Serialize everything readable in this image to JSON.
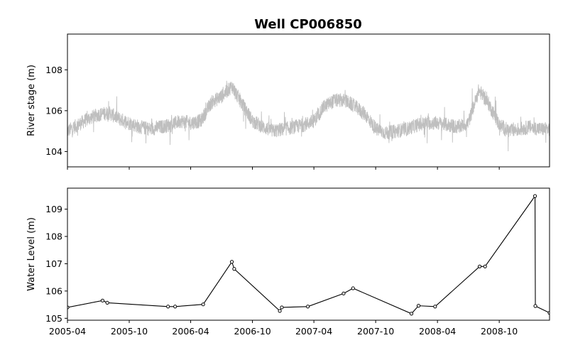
{
  "chart_data": [
    {
      "type": "line",
      "title": "Well CP006850",
      "xlabel": "",
      "ylabel": "River stage (m)",
      "ylim": [
        103.25,
        109.75
      ],
      "yticks": [
        104,
        106,
        108
      ],
      "xlim": [
        "2005-04-01",
        "2009-02-27"
      ],
      "grid": false,
      "series": [
        {
          "color": "#bfbfbf",
          "x": [
            "2005-04-01",
            "2005-05-01",
            "2005-06-01",
            "2005-07-01",
            "2005-08-01",
            "2005-09-01",
            "2005-10-01",
            "2005-11-01",
            "2005-12-01",
            "2006-01-01",
            "2006-02-01",
            "2006-03-01",
            "2006-04-01",
            "2006-05-01",
            "2006-06-01",
            "2006-07-01",
            "2006-08-01",
            "2006-09-01",
            "2006-10-01",
            "2006-11-01",
            "2006-12-01",
            "2007-01-01",
            "2007-02-01",
            "2007-03-01",
            "2007-04-01",
            "2007-05-01",
            "2007-06-01",
            "2007-07-01",
            "2007-08-01",
            "2007-09-01",
            "2007-10-01",
            "2007-11-01",
            "2007-12-01",
            "2008-01-01",
            "2008-02-01",
            "2008-03-01",
            "2008-04-01",
            "2008-05-01",
            "2008-06-01",
            "2008-07-01",
            "2008-08-01",
            "2008-09-01",
            "2008-10-01",
            "2008-11-01",
            "2008-12-01",
            "2009-01-01",
            "2009-02-01"
          ],
          "values": [
            105.0,
            105.3,
            105.6,
            105.8,
            105.9,
            105.6,
            105.4,
            105.2,
            105.1,
            105.2,
            105.3,
            105.5,
            105.4,
            105.5,
            106.4,
            106.7,
            107.2,
            106.3,
            105.5,
            105.2,
            105.0,
            105.1,
            105.2,
            105.3,
            105.5,
            106.2,
            106.5,
            106.5,
            106.2,
            105.8,
            105.1,
            104.9,
            105.0,
            105.1,
            105.3,
            105.4,
            105.4,
            105.3,
            105.2,
            105.4,
            107.0,
            106.3,
            105.3,
            105.0,
            105.1,
            105.2,
            105.1
          ],
          "noise": 0.35
        }
      ]
    },
    {
      "type": "line",
      "title": "",
      "xlabel": "",
      "ylabel": "Water Level (m)",
      "ylim": [
        104.93,
        109.77
      ],
      "yticks": [
        105,
        106,
        107,
        108,
        109
      ],
      "xlim": [
        "2005-04-01",
        "2009-02-27"
      ],
      "xticks": [
        "2005-04",
        "2005-10",
        "2006-04",
        "2006-10",
        "2007-04",
        "2007-10",
        "2008-04",
        "2008-10"
      ],
      "grid": false,
      "series": [
        {
          "color": "#000000",
          "marker": "circle",
          "x": [
            "2005-04-01",
            "2005-07-14",
            "2005-07-28",
            "2006-01-24",
            "2006-02-14",
            "2006-05-08",
            "2006-08-01",
            "2006-08-08",
            "2006-12-21",
            "2006-12-27",
            "2007-03-14",
            "2007-06-28",
            "2007-07-26",
            "2008-01-15",
            "2008-02-05",
            "2008-03-25",
            "2008-08-04",
            "2008-08-20",
            "2009-01-15",
            "2009-01-16",
            "2009-02-27"
          ],
          "values": [
            105.4,
            105.65,
            105.57,
            105.43,
            105.43,
            105.51,
            107.07,
            106.81,
            105.27,
            105.4,
            105.43,
            105.91,
            106.1,
            105.17,
            105.46,
            105.43,
            106.9,
            106.9,
            109.48,
            105.45,
            105.2
          ]
        }
      ]
    }
  ]
}
